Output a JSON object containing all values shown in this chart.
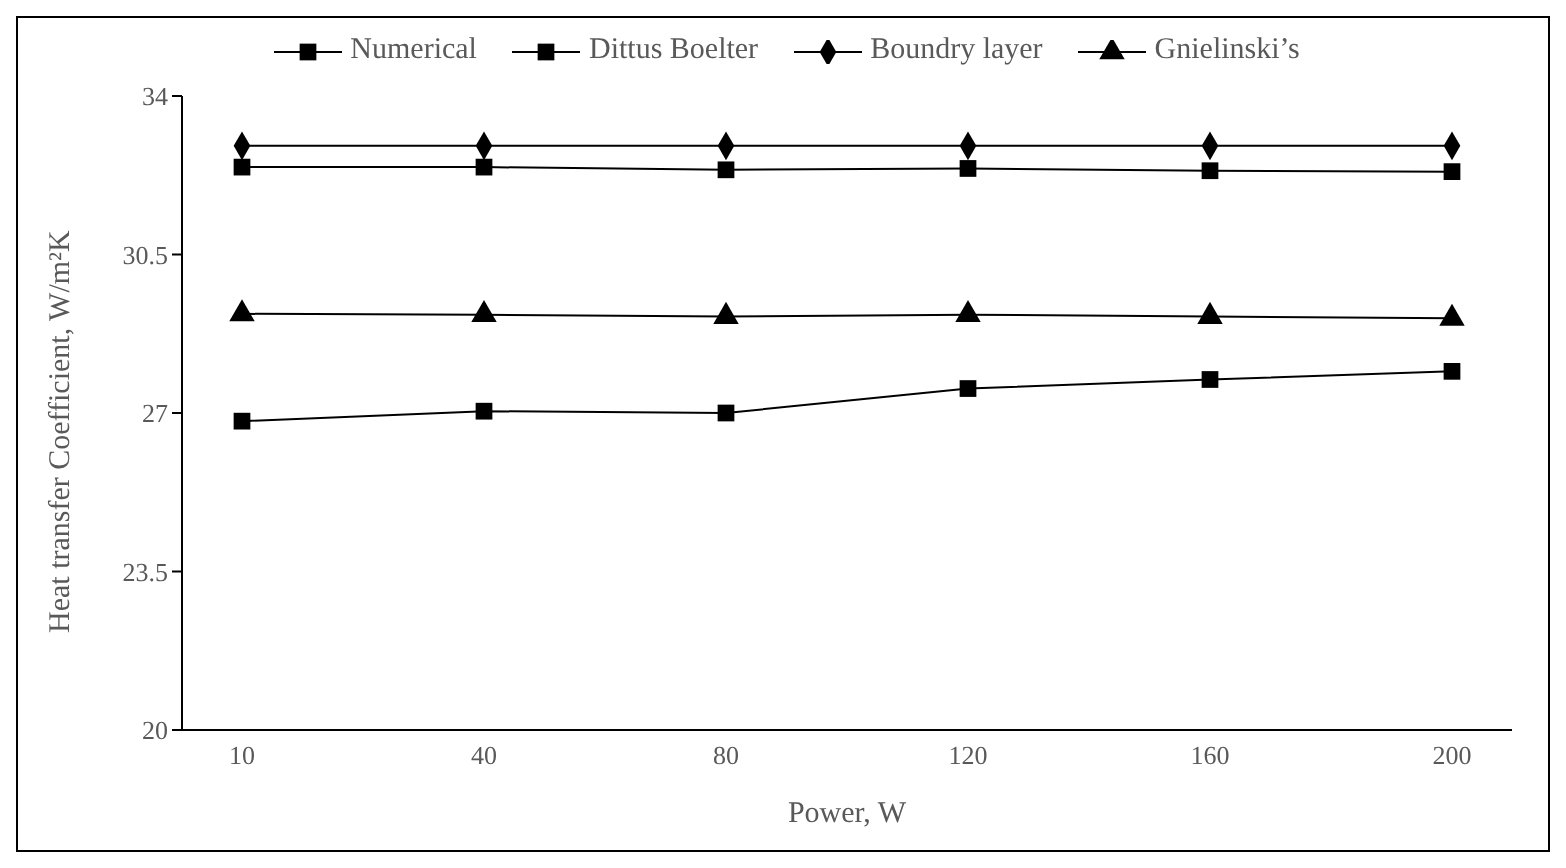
{
  "chart_data": {
    "type": "line",
    "xlabel": "Power, W",
    "ylabel": "Heat transfer Coefficient, W/m²K",
    "categories": [
      "10",
      "40",
      "80",
      "120",
      "160",
      "200"
    ],
    "series": [
      {
        "name": "Numerical",
        "color": "#000000",
        "marker": "square",
        "values": [
          26.82,
          27.04,
          27.0,
          27.54,
          27.74,
          27.92
        ]
      },
      {
        "name": "Dittus Boelter",
        "color": "#000000",
        "marker": "square",
        "values": [
          32.43,
          32.43,
          32.37,
          32.4,
          32.35,
          32.33
        ]
      },
      {
        "name": "Boundry layer",
        "color": "#000000",
        "marker": "diamond",
        "values": [
          32.9,
          32.9,
          32.9,
          32.9,
          32.9,
          32.9
        ]
      },
      {
        "name": "Gnielinski’s",
        "color": "#000000",
        "marker": "triangle",
        "values": [
          29.19,
          29.17,
          29.13,
          29.17,
          29.13,
          29.09
        ]
      }
    ],
    "ylim": [
      20,
      34
    ],
    "yticks": [
      20,
      23.5,
      27,
      30.5,
      34
    ],
    "grid": false,
    "legend": "top",
    "line_style": "solid"
  }
}
